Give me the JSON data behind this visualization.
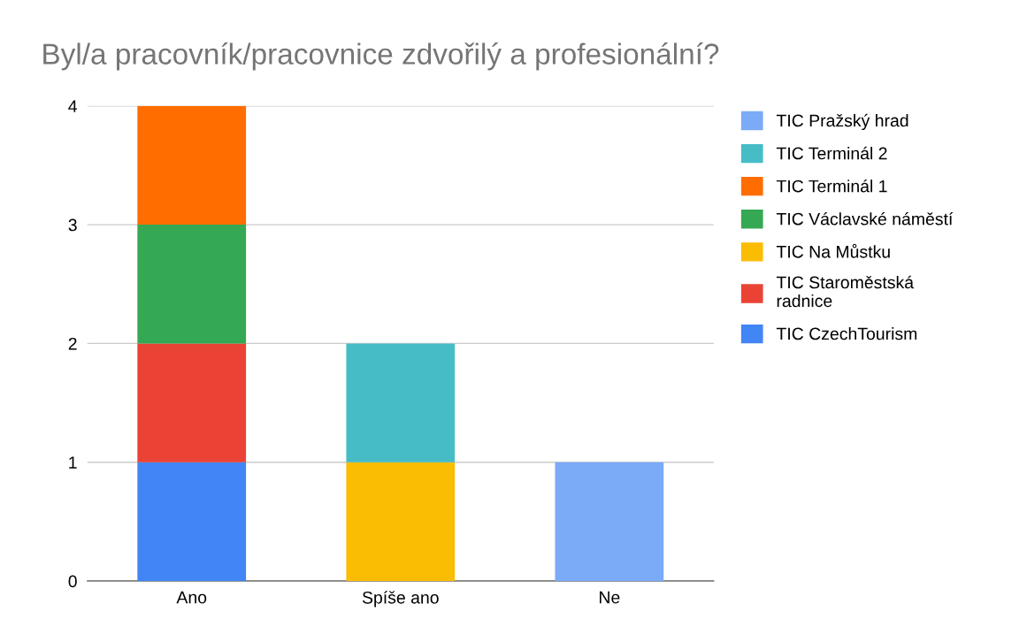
{
  "chart_data": {
    "type": "bar",
    "title": "Byl/a pracovník/pracovnice zdvořilý a profesionální?",
    "categories": [
      "Ano",
      "Spíše ano",
      "Ne"
    ],
    "stacked": true,
    "series": [
      {
        "name": "TIC CzechTourism",
        "color": "#4285f4",
        "values": [
          1,
          null,
          null
        ]
      },
      {
        "name": "TIC Staroměstská\nradnice",
        "color": "#ea4335",
        "values": [
          1,
          null,
          null
        ]
      },
      {
        "name": "TIC Na Můstku",
        "color": "#fbbc04",
        "values": [
          null,
          1,
          null
        ]
      },
      {
        "name": "TIC Václavské náměstí",
        "color": "#34a853",
        "values": [
          1,
          null,
          null
        ]
      },
      {
        "name": "TIC Terminál 1",
        "color": "#ff6d01",
        "values": [
          1,
          null,
          null
        ]
      },
      {
        "name": "TIC Terminál 2",
        "color": "#46bdc6",
        "values": [
          null,
          1,
          null
        ]
      },
      {
        "name": "TIC Pražský hrad",
        "color": "#7baaf7",
        "values": [
          null,
          null,
          1
        ]
      }
    ],
    "ylim": [
      0,
      4
    ],
    "yticks": [
      0,
      1,
      2,
      3,
      4
    ],
    "grid": "y",
    "legend": "right"
  }
}
